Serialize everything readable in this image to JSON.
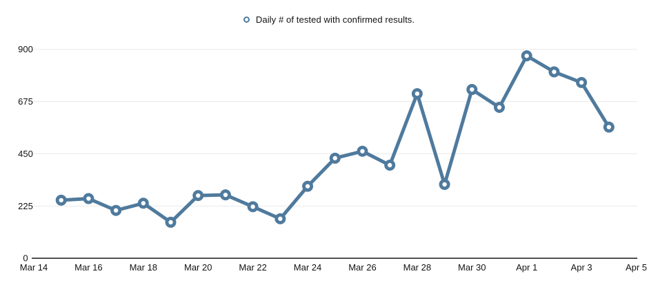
{
  "legend": {
    "label": "Daily # of tested with confirmed results."
  },
  "colors": {
    "series": "#4f7a9d",
    "marker_fill": "#ffffff",
    "grid": "#eaeaea",
    "axis": "#1a1a1a",
    "text": "#111111",
    "background": "#ffffff"
  },
  "chart_data": {
    "type": "line",
    "title": "",
    "series_name": "Daily # of tested with confirmed results.",
    "x": [
      "Mar 15",
      "Mar 16",
      "Mar 17",
      "Mar 18",
      "Mar 19",
      "Mar 20",
      "Mar 21",
      "Mar 22",
      "Mar 23",
      "Mar 24",
      "Mar 25",
      "Mar 26",
      "Mar 27",
      "Mar 28",
      "Mar 29",
      "Mar 30",
      "Mar 31",
      "Apr 1",
      "Apr 2",
      "Apr 3",
      "Apr 4"
    ],
    "values": [
      250,
      257,
      206,
      237,
      155,
      270,
      273,
      222,
      170,
      310,
      431,
      461,
      401,
      709,
      318,
      727,
      650,
      872,
      803,
      757,
      565
    ],
    "xlabel": "",
    "ylabel": "",
    "x_tick_labels": [
      "Mar 14",
      "Mar 16",
      "Mar 18",
      "Mar 20",
      "Mar 22",
      "Mar 24",
      "Mar 26",
      "Mar 28",
      "Mar 30",
      "Apr 1",
      "Apr 3",
      "Apr 5"
    ],
    "x_tick_interval_days": 2,
    "x_start_day_offset": 1,
    "x_total_days": 22,
    "y_ticks": [
      0,
      225,
      450,
      675,
      900
    ],
    "ylim": [
      0,
      900
    ],
    "grid": "horizontal",
    "legend_position": "top-center",
    "marker": "open-circle"
  }
}
